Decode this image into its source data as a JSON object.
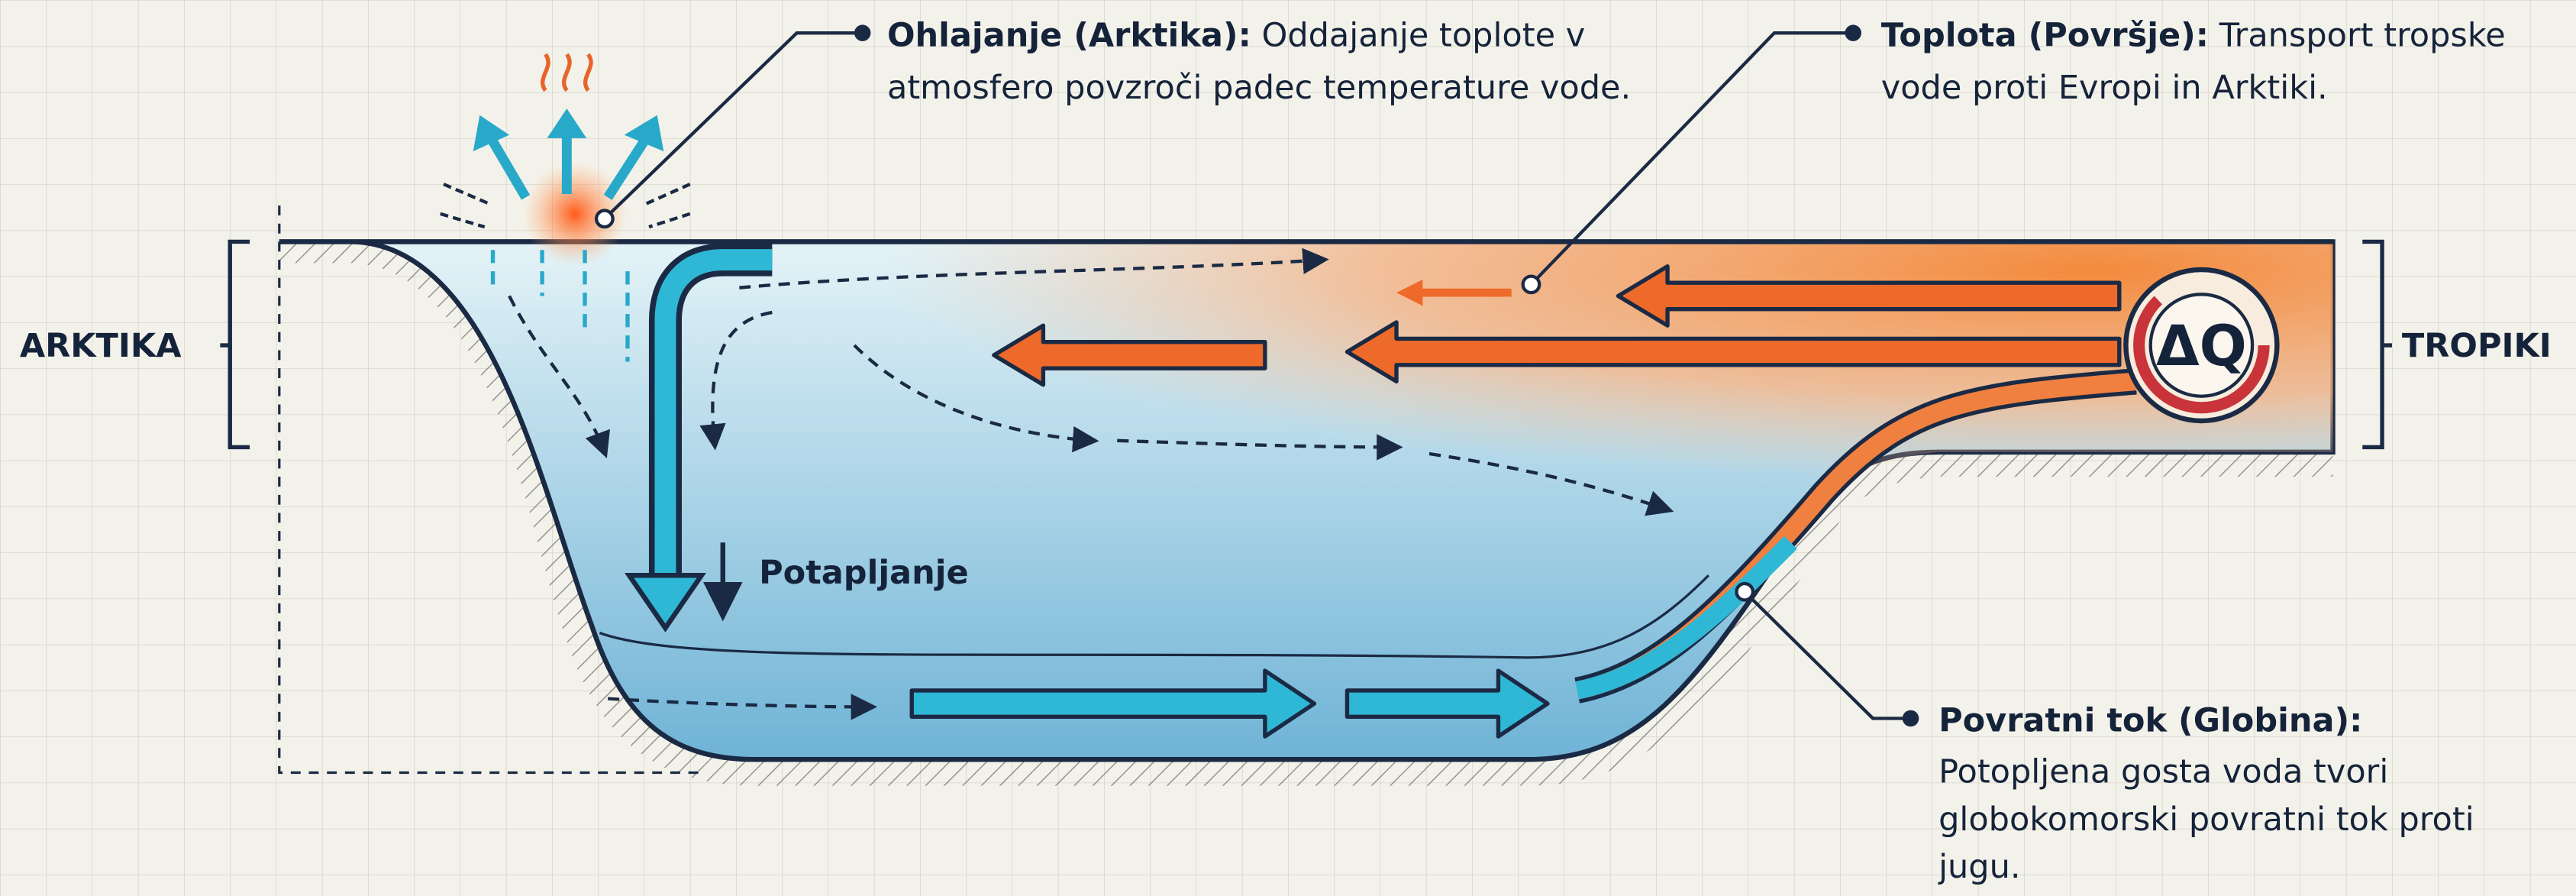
{
  "callouts": [
    {
      "title": "Ohlajanje (Arktika):",
      "lines": [
        "Oddajanje toplote v",
        "atmosfero povzroči padec temperature vode."
      ]
    },
    {
      "title": "Toplota (Površje):",
      "lines": [
        "Transport tropske",
        "vode proti Evropi in Arktiki."
      ]
    },
    {
      "title": "Povratni tok (Globina):",
      "lines": [
        "Potopljena gosta voda tvori",
        "globokomorski povratni tok proti",
        "jugu."
      ]
    }
  ],
  "regions": {
    "left": "ARKTIKA",
    "right": "TROPIKI"
  },
  "sinking_label": "Potapljanje",
  "badge": "ΔQ"
}
